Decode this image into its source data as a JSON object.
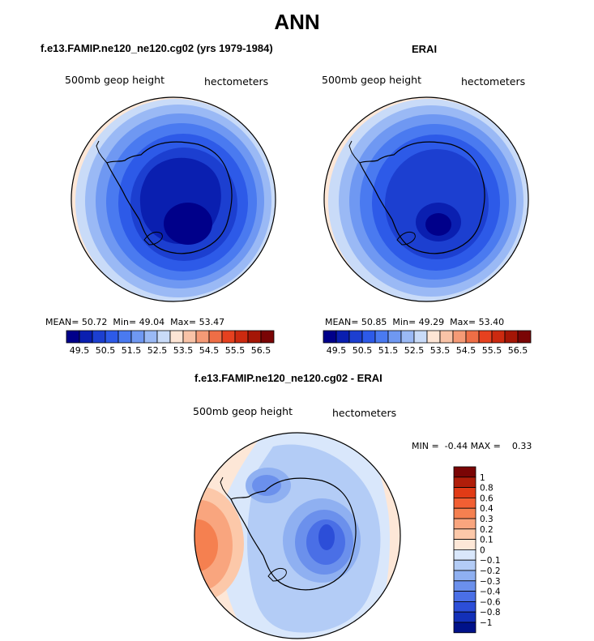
{
  "page": {
    "title": "ANN"
  },
  "panels": [
    {
      "id": "model",
      "title": "f.e13.FAMIP.ne120_ne120.cg02 (yrs 1979-1984)",
      "field_label": "500mb geop height",
      "units": "hectometers",
      "stats": {
        "mean_label": "MEAN=",
        "mean": "50.72",
        "min_label": "Min=",
        "min": "49.04",
        "max_label": "Max=",
        "max": "53.47"
      }
    },
    {
      "id": "obs",
      "title": "ERAI",
      "field_label": "500mb geop height",
      "units": "hectometers",
      "stats": {
        "mean_label": "MEAN=",
        "mean": "50.85",
        "min_label": "Min=",
        "min": "49.29",
        "max_label": "Max=",
        "max": "53.40"
      }
    },
    {
      "id": "diff",
      "title": "f.e13.FAMIP.ne120_ne120.cg02 - ERAI",
      "field_label": "500mb geop height",
      "units": "hectometers",
      "minmax": "MIN =  -0.44 MAX =    0.33"
    }
  ],
  "chart_data": [
    {
      "type": "heatmap",
      "subtype": "polar-stereographic contour map (Southern Hemisphere)",
      "title": "f.e13.FAMIP.ne120_ne120.cg02 (yrs 1979-1984)",
      "variable": "500mb geop height",
      "units": "hectometers",
      "mean": 50.72,
      "min": 49.04,
      "max": 53.47,
      "colorbar": {
        "orientation": "horizontal",
        "labels": [
          "49.5",
          "50.5",
          "51.5",
          "52.5",
          "53.5",
          "54.5",
          "55.5",
          "56.5"
        ],
        "colors": [
          "#00008a",
          "#0a1fb0",
          "#1c3fd0",
          "#2d5ae8",
          "#4a7af0",
          "#6f98f2",
          "#9ab9f5",
          "#c9dbf8",
          "#fde5d5",
          "#f9c3a7",
          "#f59a76",
          "#ef6e46",
          "#e6411f",
          "#cc2a10",
          "#a51606",
          "#7a0505"
        ]
      }
    },
    {
      "type": "heatmap",
      "subtype": "polar-stereographic contour map (Southern Hemisphere)",
      "title": "ERAI",
      "variable": "500mb geop height",
      "units": "hectometers",
      "mean": 50.85,
      "min": 49.29,
      "max": 53.4,
      "colorbar": {
        "orientation": "horizontal",
        "labels": [
          "49.5",
          "50.5",
          "51.5",
          "52.5",
          "53.5",
          "54.5",
          "55.5",
          "56.5"
        ],
        "colors": [
          "#00008a",
          "#0a1fb0",
          "#1c3fd0",
          "#2d5ae8",
          "#4a7af0",
          "#6f98f2",
          "#9ab9f5",
          "#c9dbf8",
          "#fde5d5",
          "#f9c3a7",
          "#f59a76",
          "#ef6e46",
          "#e6411f",
          "#cc2a10",
          "#a51606",
          "#7a0505"
        ]
      }
    },
    {
      "type": "heatmap",
      "subtype": "polar-stereographic difference map (Southern Hemisphere)",
      "title": "f.e13.FAMIP.ne120_ne120.cg02 - ERAI",
      "variable": "500mb geop height",
      "units": "hectometers",
      "min": -0.44,
      "max": 0.33,
      "colorbar": {
        "orientation": "vertical",
        "labels": [
          "1",
          "0.8",
          "0.6",
          "0.4",
          "0.3",
          "0.2",
          "0.1",
          "0",
          "−0.1",
          "−0.2",
          "−0.3",
          "−0.4",
          "−0.6",
          "−0.8",
          "−1"
        ],
        "colors": [
          "#7a0505",
          "#b01e0a",
          "#e13b16",
          "#f25f33",
          "#f58050",
          "#f9a57e",
          "#fcc8a9",
          "#fde7d7",
          "#d9e7fb",
          "#b3ccf6",
          "#8fb0f1",
          "#6b90ec",
          "#4a6fe6",
          "#2c4ed8",
          "#1330b8",
          "#00128a"
        ]
      }
    }
  ]
}
